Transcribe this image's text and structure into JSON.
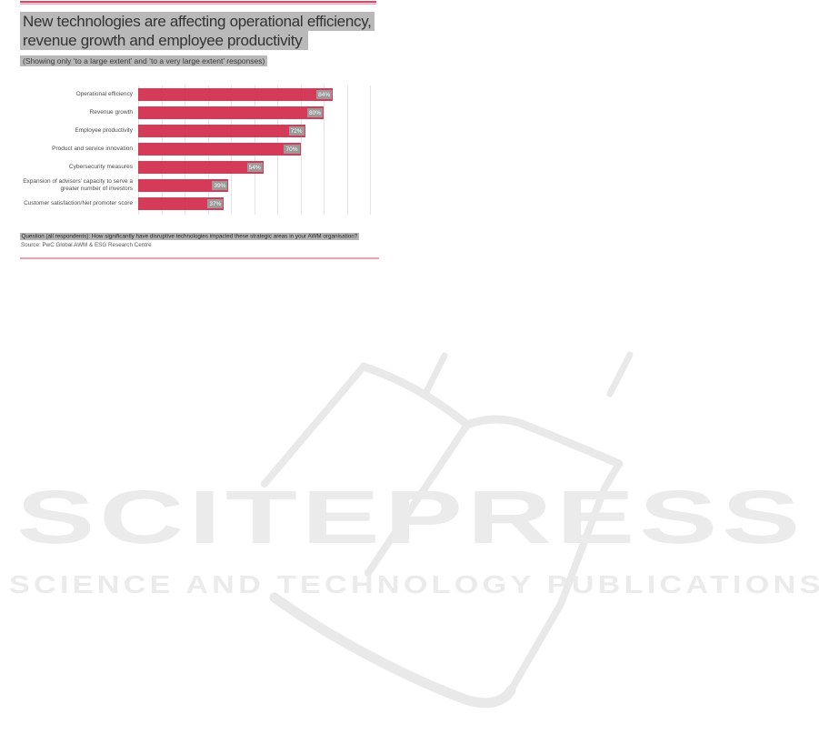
{
  "header": {
    "title_line1": "New technologies are affecting operational efficiency,",
    "title_line2": "revenue growth and employee productivity",
    "subtitle": "(Showing only ‘to a large extent’ and ‘to a very large extent’ responses)"
  },
  "chart_data": {
    "type": "bar",
    "orientation": "horizontal",
    "categories": [
      "Operational efficiency",
      "Revenue growth",
      "Employee productivity",
      "Product and service innovation",
      "Cybersecurity measures",
      "Expansion of advisors’ capacity to serve a greater number of investors",
      "Customer satisfaction/Net promoter score"
    ],
    "values": [
      84,
      80,
      72,
      70,
      54,
      39,
      37
    ],
    "value_labels": [
      "84%",
      "80%",
      "72%",
      "70%",
      "54%",
      "39%",
      "37%"
    ],
    "xlim": [
      0,
      100
    ],
    "gridline_step_percent": 10,
    "grid": true,
    "legend": false,
    "bar_color": "#d63a59",
    "value_label_bg": "#9a9a9a",
    "value_label_color": "#ffffff"
  },
  "footer": {
    "question": "Question (all respondents): How significantly have disruptive technologies impacted these strategic areas in your AWM organisation?",
    "source": "Source: PwC Global AWM & ESG Research Centre"
  },
  "watermark": {
    "brand": "SCITEPRESS",
    "tagline": "SCIENCE AND TECHNOLOGY PUBLICATIONS"
  },
  "colors": {
    "accent_rule_dark": "#db4764",
    "accent_rule_light": "#efa3b1",
    "text_highlight": "#b9b9b9",
    "title_text": "#333333",
    "gridline": "#e4e4e4",
    "watermark": "#ebebeb"
  }
}
